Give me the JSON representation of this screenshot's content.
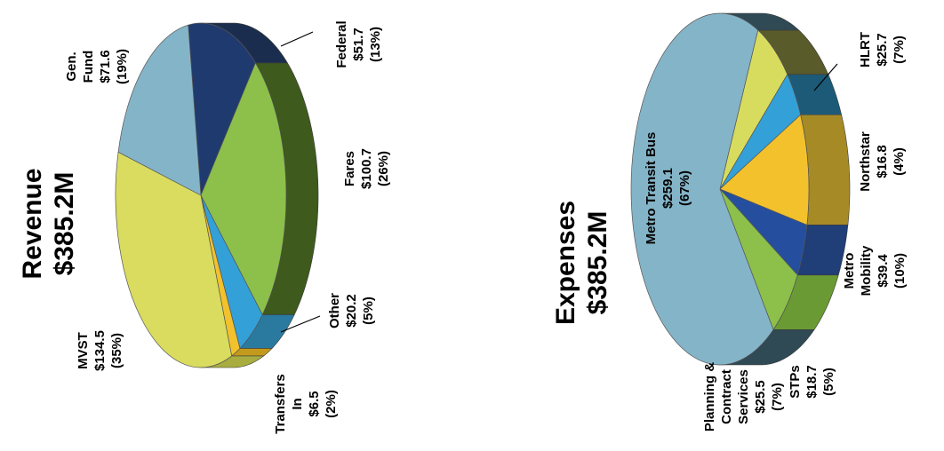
{
  "chart_data": [
    {
      "type": "pie",
      "title_line1": "Revenue",
      "title_line2": "$385.2M",
      "categories": [
        "Federal",
        "Fares",
        "Other",
        "Transfers In",
        "MVST",
        "Gen. Fund"
      ],
      "values": [
        51.7,
        100.7,
        20.2,
        6.5,
        134.5,
        71.6
      ],
      "series": [
        {
          "label_lines": [
            "Federal",
            "$51.7",
            "(13%)"
          ]
        },
        {
          "label_lines": [
            "Fares",
            "$100.7",
            "(26%)"
          ]
        },
        {
          "label_lines": [
            "Other",
            "$20.2",
            "(5%)"
          ]
        },
        {
          "label_lines": [
            "Transfers",
            "In",
            "$6.5",
            "(2%)"
          ]
        },
        {
          "label_lines": [
            "MVST",
            "$134.5",
            "(35%)"
          ]
        },
        {
          "label_lines": [
            "Gen.",
            "Fund",
            "$71.6",
            "(19%)"
          ]
        }
      ],
      "colors": [
        "#1f3a6e",
        "#8cc04a",
        "#34a0d8",
        "#f2c12c",
        "#d9dc5e",
        "#84b4c8"
      ],
      "side_colors": [
        "#1b2d4f",
        "#3e5a1d",
        "#2a7aa0",
        "#c49a1c",
        "#a9ad3f",
        "#5e8a9c"
      ]
    },
    {
      "type": "pie",
      "title_line1": "Expenses",
      "title_line2": "$385.2M",
      "categories": [
        "HLRT",
        "Northstar",
        "Metro Mobility",
        "STPs",
        "Planning & Contract Services",
        "Metro Transit Bus"
      ],
      "values": [
        25.7,
        16.8,
        39.4,
        18.7,
        25.5,
        259.1
      ],
      "series": [
        {
          "label_lines": [
            "HLRT",
            "$25.7",
            "(7%)"
          ]
        },
        {
          "label_lines": [
            "Northstar",
            "$16.8",
            "(4%)"
          ]
        },
        {
          "label_lines": [
            "Metro",
            "Mobility",
            "$39.4",
            "(10%)"
          ]
        },
        {
          "label_lines": [
            "STPs",
            "$18.7",
            "(5%)"
          ]
        },
        {
          "label_lines": [
            "Planning &",
            "Contract",
            "Services",
            "$25.5",
            "(7%)"
          ]
        },
        {
          "label_lines": [
            "Metro Transit  Bus",
            "$259.1",
            "(67%)"
          ]
        }
      ],
      "colors": [
        "#d8dc5e",
        "#34a0d8",
        "#f2c12c",
        "#254f9e",
        "#8cc04a",
        "#84b4c8"
      ],
      "side_colors": [
        "#5a5b2a",
        "#1d5a78",
        "#a68a26",
        "#203e78",
        "#6a9a34",
        "#2f4a54"
      ]
    }
  ]
}
